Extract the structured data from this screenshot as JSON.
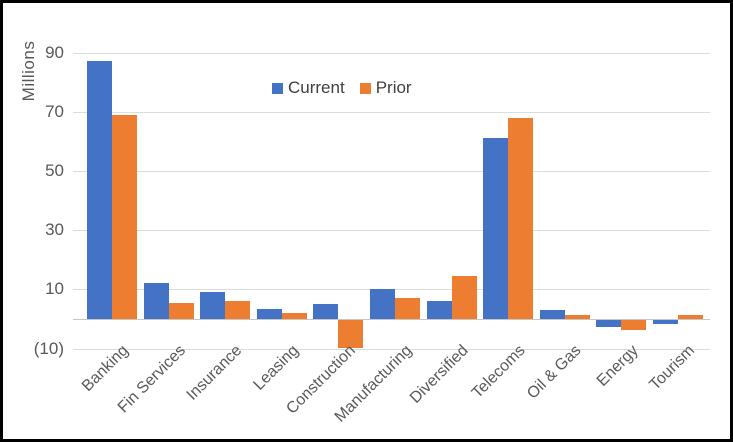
{
  "chart_data": {
    "type": "bar",
    "title": "",
    "xlabel": "",
    "ylabel": "Millions",
    "categories": [
      "Banking",
      "Fin Services",
      "Insurance",
      "Leasing",
      "Construction",
      "Manufacturing",
      "Diversified",
      "Telecoms",
      "Oil & Gas",
      "Energy",
      "Tourism"
    ],
    "series": [
      {
        "name": "Current",
        "color": "#4472C4",
        "values": [
          87,
          12,
          9,
          3.5,
          5,
          10,
          6,
          61,
          3,
          -2.5,
          -1.5
        ]
      },
      {
        "name": "Prior",
        "color": "#ED7D31",
        "values": [
          69,
          5.5,
          6,
          2,
          -9.5,
          7,
          14.5,
          68,
          1.5,
          -3.5,
          1.5
        ]
      }
    ],
    "y_ticks": [
      {
        "value": 90,
        "label": "90"
      },
      {
        "value": 70,
        "label": "70"
      },
      {
        "value": 50,
        "label": "50"
      },
      {
        "value": 30,
        "label": "30"
      },
      {
        "value": 10,
        "label": "10"
      },
      {
        "value": -10,
        "label": "(10)"
      }
    ],
    "ylim": [
      -10,
      95
    ],
    "grid": true,
    "legend_position": "top",
    "colors": {
      "gridline": "#DCDCDC",
      "axis_line": "#C6C6C6",
      "axis_text": "#595959",
      "legend_text": "#3F3F3F",
      "frame_border": "#000000"
    }
  }
}
